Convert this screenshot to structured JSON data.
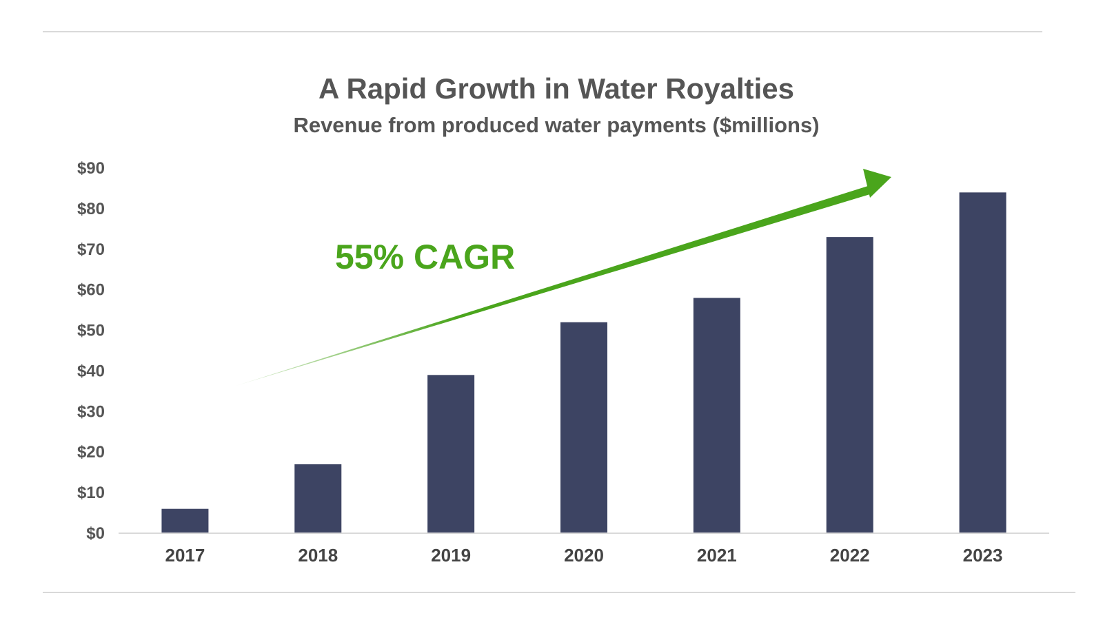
{
  "chart_data": {
    "type": "bar",
    "title": "A Rapid Growth in Water Royalties",
    "subtitle": "Revenue from produced water payments ($millions)",
    "categories": [
      "2017",
      "2018",
      "2019",
      "2020",
      "2021",
      "2022",
      "2023"
    ],
    "values": [
      6,
      17,
      39,
      52,
      58,
      73,
      84
    ],
    "ylim": [
      0,
      90
    ],
    "yticks": [
      0,
      10,
      20,
      30,
      40,
      50,
      60,
      70,
      80,
      90
    ],
    "ytick_labels": [
      "$0",
      "$10",
      "$20",
      "$30",
      "$40",
      "$50",
      "$60",
      "$70",
      "$80",
      "$90"
    ],
    "xlabel": "",
    "ylabel": "",
    "grid": false,
    "annotation": {
      "text": "55% CAGR",
      "arrow": "upward trend arrow spanning 2017 to 2023"
    },
    "colors": {
      "bar": "#3d4463",
      "annotation": "#4aa51c",
      "text": "#555555",
      "rule": "#d9d9d9"
    }
  }
}
